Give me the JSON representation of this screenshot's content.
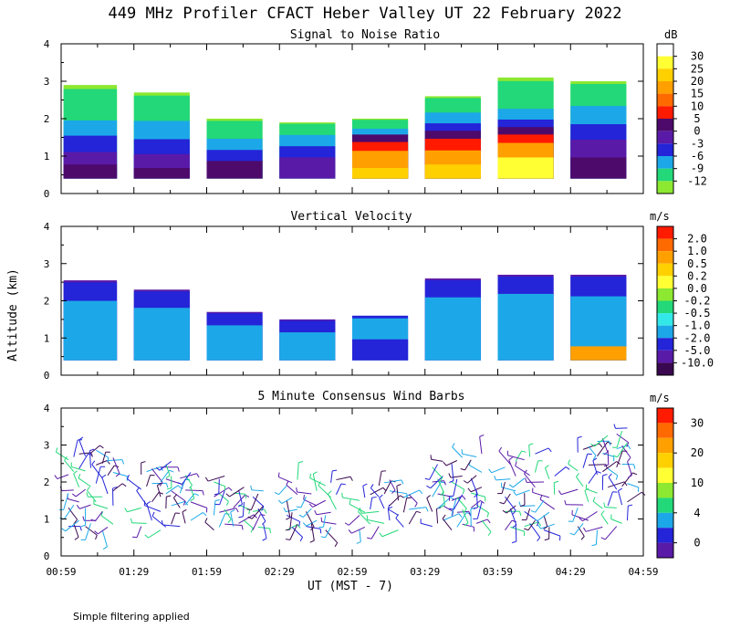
{
  "title": "449 MHz Profiler CFACT Heber Valley UT 22 February 2022",
  "ylabel": "Altitude (km)",
  "xlabel": "UT  (MST - 7)",
  "footnote": "Simple filtering applied",
  "x_ticks": [
    "00:59",
    "01:29",
    "01:59",
    "02:29",
    "02:59",
    "03:29",
    "03:59",
    "04:29",
    "04:59"
  ],
  "chart_data": [
    {
      "type": "heatmap",
      "title": "Signal to Noise Ratio",
      "xlabel": "UT  (MST - 7)",
      "ylabel": "Altitude (km)",
      "x_range": [
        0,
        240
      ],
      "ylim": [
        0,
        4
      ],
      "y_ticks": [
        0,
        1,
        2,
        3,
        4
      ],
      "colorbar": {
        "unit": "dB",
        "labels": [
          "30",
          "25",
          "20",
          "15",
          "10",
          "5",
          "0",
          "-3",
          "-6",
          "-9",
          "-12"
        ],
        "colors": [
          "#ffffff",
          "#ffff33",
          "#ffd000",
          "#ffa000",
          "#ff6a00",
          "#ff1a00",
          "#4d0a6b",
          "#5a1aa8",
          "#2424d8",
          "#1ca8e8",
          "#22d878",
          "#8ce830"
        ]
      },
      "segments": [
        {
          "x0": 1,
          "x1": 23,
          "tops": [
            2.9,
            2.0,
            1.6,
            1.15,
            0.8
          ],
          "colors": [
            "#8ce830",
            "#22d878",
            "#1ca8e8",
            "#2424d8",
            "#5a1aa8",
            "#4d0a6b"
          ]
        },
        {
          "x0": 30,
          "x1": 53,
          "tops": [
            2.7,
            2.0,
            1.5,
            1.1,
            0.7
          ],
          "colors": [
            "#8ce830",
            "#22d878",
            "#1ca8e8",
            "#2424d8",
            "#5a1aa8",
            "#4d0a6b"
          ]
        },
        {
          "x0": 60,
          "x1": 83,
          "tops": [
            2.0,
            1.5,
            1.2,
            0.9
          ],
          "colors": [
            "#8ce830",
            "#22d878",
            "#1ca8e8",
            "#2424d8",
            "#4d0a6b"
          ]
        },
        {
          "x0": 90,
          "x1": 113,
          "tops": [
            1.9,
            1.6,
            1.3,
            1.0
          ],
          "colors": [
            "#8ce830",
            "#22d878",
            "#1ca8e8",
            "#2424d8",
            "#5a1aa8"
          ]
        },
        {
          "x0": 120,
          "x1": 143,
          "tops": [
            2.0,
            1.75,
            1.6,
            1.4,
            1.2,
            0.7
          ],
          "colors": [
            "#8ce830",
            "#22d878",
            "#1ca8e8",
            "#4d0a6b",
            "#ff1a00",
            "#ffa000",
            "#ffd000"
          ]
        },
        {
          "x0": 150,
          "x1": 173,
          "tops": [
            2.6,
            2.2,
            1.9,
            1.7,
            1.5,
            1.2,
            0.8
          ],
          "colors": [
            "#8ce830",
            "#22d878",
            "#1ca8e8",
            "#2424d8",
            "#4d0a6b",
            "#ff1a00",
            "#ffa000",
            "#ffd000"
          ]
        },
        {
          "x0": 180,
          "x1": 203,
          "tops": [
            3.1,
            2.3,
            2.0,
            1.8,
            1.6,
            1.4,
            1.0
          ],
          "colors": [
            "#8ce830",
            "#22d878",
            "#1ca8e8",
            "#2424d8",
            "#4d0a6b",
            "#ff1a00",
            "#ffa000",
            "#ffff33"
          ]
        },
        {
          "x0": 210,
          "x1": 233,
          "tops": [
            3.0,
            2.4,
            1.9,
            1.5,
            1.0
          ],
          "colors": [
            "#8ce830",
            "#22d878",
            "#1ca8e8",
            "#2424d8",
            "#5a1aa8",
            "#4d0a6b"
          ]
        }
      ]
    },
    {
      "type": "heatmap",
      "title": "Vertical Velocity",
      "xlabel": "UT  (MST - 7)",
      "ylabel": "Altitude (km)",
      "x_range": [
        0,
        240
      ],
      "ylim": [
        0,
        4
      ],
      "y_ticks": [
        0,
        1,
        2,
        3,
        4
      ],
      "colorbar": {
        "unit": "m/s",
        "labels": [
          "2.0",
          "1.0",
          "0.5",
          "0.2",
          "0.0",
          "-0.2",
          "-0.5",
          "-1.0",
          "-2.0",
          "-5.0",
          "-10.0"
        ],
        "colors": [
          "#ff1a00",
          "#ff6a00",
          "#ffa000",
          "#ffd000",
          "#ffff33",
          "#8ce830",
          "#22d878",
          "#33e8e8",
          "#1ca8e8",
          "#2424d8",
          "#5a1aa8",
          "#3a0850"
        ]
      },
      "segments": [
        {
          "x0": 1,
          "x1": 23,
          "tops": [
            2.55,
            2.1
          ],
          "colors": [
            "#5a1aa8",
            "#2424d8",
            "#1ca8e8"
          ]
        },
        {
          "x0": 30,
          "x1": 53,
          "tops": [
            2.3,
            1.9
          ],
          "colors": [
            "#5a1aa8",
            "#2424d8",
            "#1ca8e8"
          ]
        },
        {
          "x0": 60,
          "x1": 83,
          "tops": [
            1.7,
            1.4
          ],
          "colors": [
            "#5a1aa8",
            "#2424d8",
            "#1ca8e8"
          ]
        },
        {
          "x0": 90,
          "x1": 113,
          "tops": [
            1.5,
            1.2
          ],
          "colors": [
            "#5a1aa8",
            "#2424d8",
            "#1ca8e8"
          ]
        },
        {
          "x0": 120,
          "x1": 143,
          "tops": [
            1.6,
            1.0
          ],
          "colors": [
            "#2424d8",
            "#1ca8e8",
            "#2424d8"
          ]
        },
        {
          "x0": 150,
          "x1": 173,
          "tops": [
            2.6,
            2.2
          ],
          "colors": [
            "#5a1aa8",
            "#2424d8",
            "#1ca8e8"
          ]
        },
        {
          "x0": 180,
          "x1": 203,
          "tops": [
            2.7,
            2.3
          ],
          "colors": [
            "#5a1aa8",
            "#2424d8",
            "#1ca8e8"
          ]
        },
        {
          "x0": 210,
          "x1": 233,
          "tops": [
            2.7,
            2.3,
            0.8
          ],
          "colors": [
            "#5a1aa8",
            "#2424d8",
            "#1ca8e8",
            "#ffa000"
          ]
        }
      ]
    },
    {
      "type": "scatter",
      "title": "5 Minute Consensus Wind Barbs",
      "xlabel": "UT  (MST - 7)",
      "ylabel": "Altitude (km)",
      "x_range": [
        0,
        240
      ],
      "ylim": [
        0,
        4
      ],
      "y_ticks": [
        0,
        1,
        2,
        3,
        4
      ],
      "colorbar": {
        "unit": "m/s",
        "labels": [
          "30",
          "20",
          "10",
          "4",
          "0"
        ],
        "colors": [
          "#ff1a00",
          "#ff6a00",
          "#ffa000",
          "#ffd000",
          "#ffff33",
          "#8ce830",
          "#22d878",
          "#1ca8e8",
          "#2424d8",
          "#5a1aa8"
        ]
      },
      "barb_columns": [
        {
          "x": 3,
          "levels": [
            0.8,
            1.3,
            1.7,
            2.2,
            2.6
          ]
        },
        {
          "x": 10,
          "levels": [
            0.8,
            1.3,
            1.8,
            2.3,
            2.7
          ]
        },
        {
          "x": 17,
          "levels": [
            0.7,
            1.2,
            1.6,
            2.1,
            2.5
          ]
        },
        {
          "x": 33,
          "levels": [
            0.8,
            1.3,
            1.8,
            2.2
          ]
        },
        {
          "x": 41,
          "levels": [
            0.7,
            1.2,
            1.6,
            2.0,
            2.4
          ]
        },
        {
          "x": 49,
          "levels": [
            0.8,
            1.3,
            1.7,
            2.1
          ]
        },
        {
          "x": 63,
          "levels": [
            0.7,
            1.1,
            1.6,
            2.0
          ]
        },
        {
          "x": 71,
          "levels": [
            0.8,
            1.3,
            1.7
          ]
        },
        {
          "x": 79,
          "levels": [
            0.7,
            1.2,
            1.6
          ]
        },
        {
          "x": 93,
          "levels": [
            0.7,
            1.1,
            1.5,
            1.9
          ]
        },
        {
          "x": 101,
          "levels": [
            0.8,
            1.2,
            1.6
          ]
        },
        {
          "x": 109,
          "levels": [
            0.7,
            1.1,
            1.5,
            1.9
          ]
        },
        {
          "x": 123,
          "levels": [
            0.7,
            1.1,
            1.5
          ]
        },
        {
          "x": 131,
          "levels": [
            0.8,
            1.2,
            1.6,
            1.9
          ]
        },
        {
          "x": 139,
          "levels": [
            0.7,
            1.1,
            1.5
          ]
        },
        {
          "x": 153,
          "levels": [
            0.8,
            1.2,
            1.6,
            2.0,
            2.4
          ]
        },
        {
          "x": 161,
          "levels": [
            0.7,
            1.1,
            1.5,
            2.0,
            2.5
          ]
        },
        {
          "x": 169,
          "levels": [
            0.8,
            1.3,
            1.7,
            2.1,
            2.6
          ]
        },
        {
          "x": 183,
          "levels": [
            0.7,
            1.2,
            1.6,
            2.0,
            2.4
          ]
        },
        {
          "x": 191,
          "levels": [
            0.8,
            1.2,
            1.7,
            2.1,
            2.6
          ]
        },
        {
          "x": 199,
          "levels": [
            0.7,
            1.1,
            1.5,
            2.0
          ]
        },
        {
          "x": 213,
          "levels": [
            0.8,
            1.3,
            1.8,
            2.3,
            2.8
          ]
        },
        {
          "x": 221,
          "levels": [
            0.7,
            1.2,
            1.7,
            2.2,
            2.7,
            3.1
          ]
        },
        {
          "x": 229,
          "levels": [
            0.8,
            1.3,
            1.8,
            2.4,
            2.9,
            3.3
          ]
        }
      ]
    }
  ]
}
